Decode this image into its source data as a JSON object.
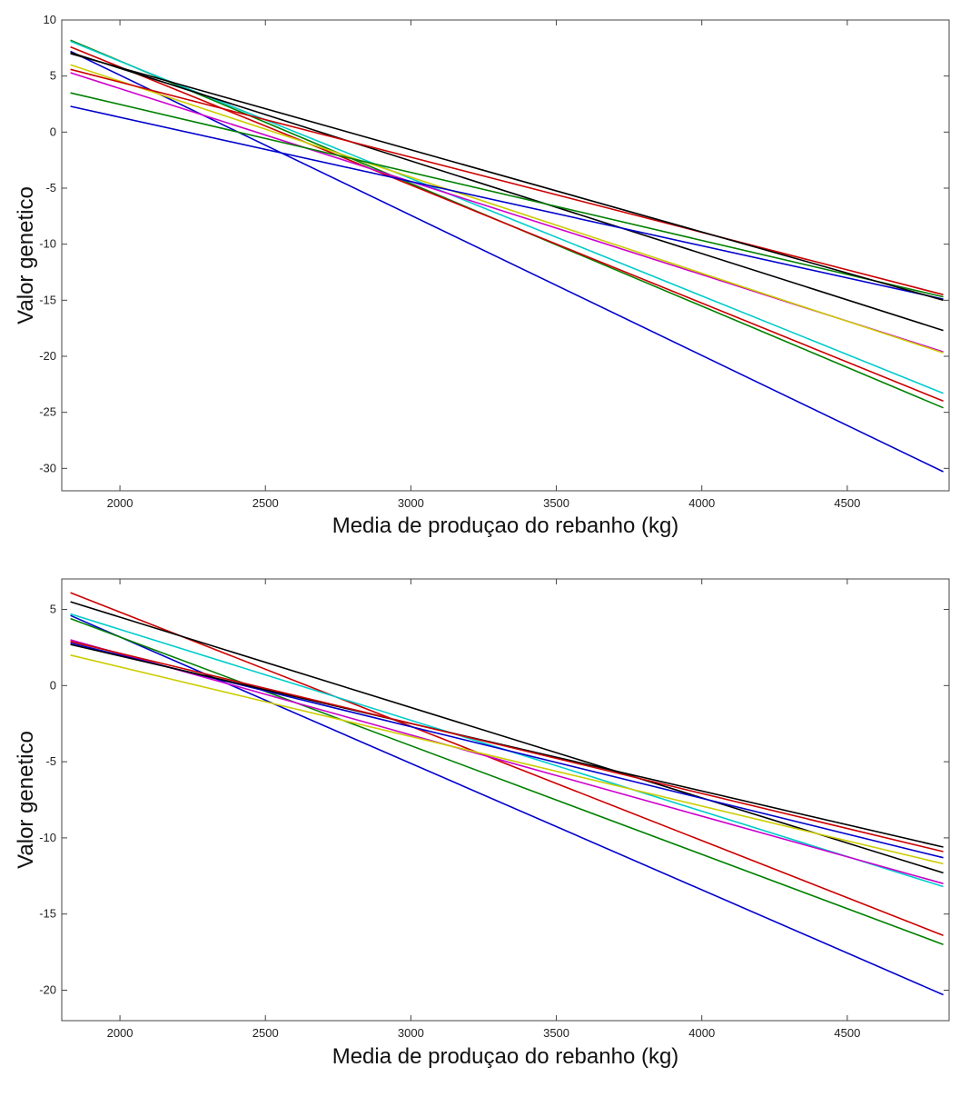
{
  "chart_data": [
    {
      "type": "line",
      "title": "",
      "xlabel": "Media de produçao do rebanho (kg)",
      "ylabel": "Valor genetico",
      "xlim": [
        1800,
        4850
      ],
      "ylim": [
        -32,
        10
      ],
      "xticks": [
        2000,
        2500,
        3000,
        3500,
        4000,
        4500
      ],
      "yticks": [
        10,
        5,
        0,
        -5,
        -10,
        -15,
        -20,
        -25,
        -30
      ],
      "grid": false,
      "x": [
        1830,
        4830
      ],
      "series": [
        {
          "color": "#0000cc",
          "values": [
            7.2,
            -30.3
          ]
        },
        {
          "color": "#008000",
          "values": [
            8.2,
            -24.6
          ]
        },
        {
          "color": "#cc0000",
          "values": [
            7.6,
            -24.0
          ]
        },
        {
          "color": "#00cccc",
          "values": [
            8.1,
            -23.3
          ]
        },
        {
          "color": "#cc00cc",
          "values": [
            5.3,
            -19.6
          ]
        },
        {
          "color": "#cccc00",
          "values": [
            6.0,
            -19.7
          ]
        },
        {
          "color": "#000000",
          "values": [
            7.1,
            -17.7
          ]
        },
        {
          "color": "#0000cc",
          "values": [
            2.3,
            -14.9
          ]
        },
        {
          "color": "#008000",
          "values": [
            3.5,
            -14.7
          ]
        },
        {
          "color": "#cc0000",
          "values": [
            5.6,
            -14.5
          ]
        },
        {
          "color": "#000000",
          "values": [
            7.0,
            -15.0
          ]
        }
      ]
    },
    {
      "type": "line",
      "title": "",
      "xlabel": "Media de produçao do rebanho (kg)",
      "ylabel": "Valor genetico",
      "xlim": [
        1800,
        4850
      ],
      "ylim": [
        -22,
        7
      ],
      "xticks": [
        2000,
        2500,
        3000,
        3500,
        4000,
        4500
      ],
      "yticks": [
        5,
        0,
        -5,
        -10,
        -15,
        -20
      ],
      "grid": false,
      "x": [
        1830,
        4830
      ],
      "series": [
        {
          "color": "#0000cc",
          "values": [
            4.6,
            -20.3
          ]
        },
        {
          "color": "#008000",
          "values": [
            4.4,
            -17.0
          ]
        },
        {
          "color": "#cc0000",
          "values": [
            6.1,
            -16.4
          ]
        },
        {
          "color": "#00cccc",
          "values": [
            4.7,
            -13.2
          ]
        },
        {
          "color": "#cc00cc",
          "values": [
            3.0,
            -13.0
          ]
        },
        {
          "color": "#000000",
          "values": [
            5.5,
            -12.3
          ]
        },
        {
          "color": "#cccc00",
          "values": [
            2.0,
            -11.7
          ]
        },
        {
          "color": "#0000cc",
          "values": [
            2.8,
            -11.3
          ]
        },
        {
          "color": "#000000",
          "values": [
            2.7,
            -10.6
          ]
        },
        {
          "color": "#cc0000",
          "values": [
            2.9,
            -10.9
          ]
        }
      ]
    }
  ]
}
